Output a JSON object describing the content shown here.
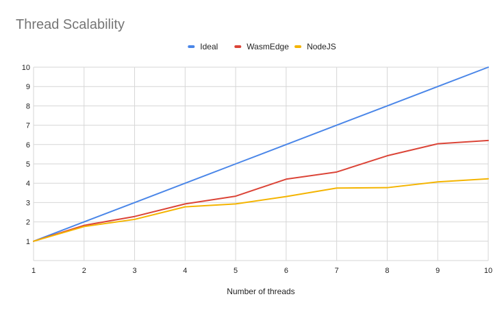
{
  "chart_data": {
    "type": "line",
    "title": "Thread Scalability",
    "xlabel": "Number of threads",
    "ylabel": "",
    "x": [
      1,
      2,
      3,
      4,
      5,
      6,
      7,
      8,
      9,
      10
    ],
    "xlim": [
      1,
      10
    ],
    "ylim": [
      0,
      10
    ],
    "yticks": [
      1,
      2,
      3,
      4,
      5,
      6,
      7,
      8,
      9,
      10
    ],
    "grid": true,
    "legend_position": "top",
    "series": [
      {
        "name": "Ideal",
        "color": "#4a86e8",
        "values": [
          1,
          2,
          3,
          4,
          5,
          6,
          7,
          8,
          9,
          10
        ]
      },
      {
        "name": "WasmEdge",
        "color": "#db4437",
        "values": [
          1,
          1.82,
          2.28,
          2.93,
          3.33,
          4.21,
          4.58,
          5.42,
          6.04,
          6.21
        ]
      },
      {
        "name": "NodeJS",
        "color": "#f4b400",
        "values": [
          1,
          1.76,
          2.13,
          2.78,
          2.93,
          3.31,
          3.75,
          3.77,
          4.07,
          4.23
        ]
      }
    ]
  }
}
